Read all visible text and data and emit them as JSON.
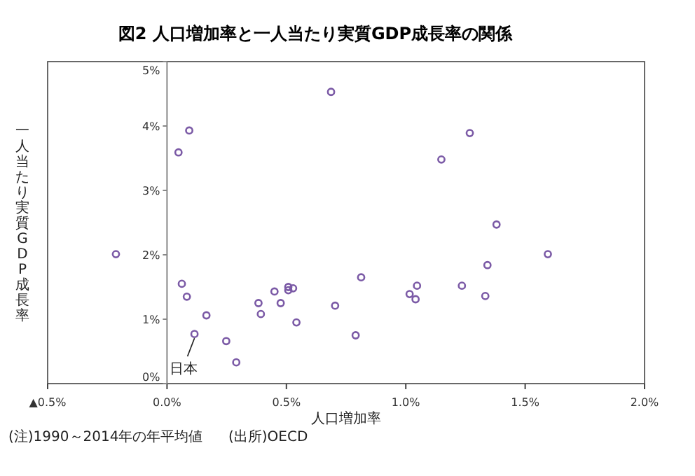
{
  "chart_data": {
    "type": "scatter",
    "title": "図2  人口増加率と一人当たり実質GDP成長率の関係",
    "xlabel": "人口増加率",
    "ylabel": "一人当たり実質GDP成長率",
    "x": [
      -0.214,
      0.048,
      0.093,
      0.687,
      0.062,
      0.083,
      0.165,
      0.115,
      0.248,
      0.29,
      0.383,
      0.393,
      0.45,
      0.476,
      0.508,
      0.528,
      0.508,
      0.542,
      0.704,
      0.79,
      0.813,
      1.268,
      1.149,
      1.38,
      1.595,
      1.342,
      1.047,
      1.235,
      1.016,
      1.041,
      1.333
    ],
    "series": [
      {
        "color": "#7b5aa6",
        "values": [
          2.01,
          3.59,
          3.93,
          4.53,
          1.55,
          1.35,
          1.06,
          0.77,
          0.66,
          0.33,
          1.25,
          1.08,
          1.43,
          1.25,
          1.5,
          1.48,
          1.45,
          0.95,
          1.21,
          0.75,
          1.65,
          3.89,
          3.48,
          2.47,
          2.01,
          1.84,
          1.52,
          1.52,
          1.39,
          1.31,
          1.36
        ]
      }
    ],
    "xlim": [
      -0.5,
      2.0
    ],
    "ylim": [
      0,
      5
    ],
    "xticks": [
      {
        "value": -0.5,
        "label": "▲0.5%"
      },
      {
        "value": 0,
        "label": "0.0%"
      },
      {
        "value": 0.5,
        "label": "0.5%"
      },
      {
        "value": 1,
        "label": "1.0%"
      },
      {
        "value": 1.5,
        "label": "1.5%"
      },
      {
        "value": 2,
        "label": "2.0%"
      }
    ],
    "yticks": [
      {
        "value": 0,
        "label": "0%"
      },
      {
        "value": 1,
        "label": "1%"
      },
      {
        "value": 2,
        "label": "2%"
      },
      {
        "value": 3,
        "label": "3%"
      },
      {
        "value": 4,
        "label": "4%"
      },
      {
        "value": 5,
        "label": "5%"
      }
    ],
    "marker": "circle",
    "grid": false,
    "annotations": [
      {
        "text": "日本",
        "x": 0.115,
        "y": 0.77
      },
      "(注)1990～2014年の年平均値",
      "(出所)OECD"
    ]
  }
}
